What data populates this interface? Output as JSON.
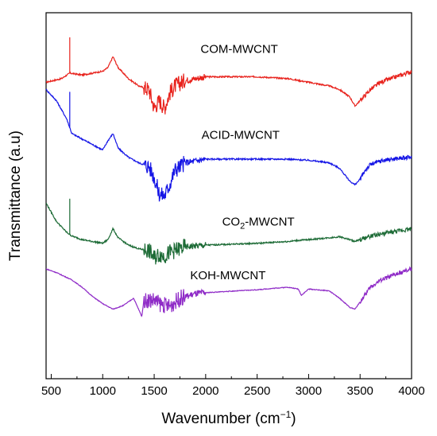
{
  "chart_data": {
    "type": "line",
    "xlabel": "Wavenumber (cm",
    "xlabel_sup": "−1",
    "xlabel_end": ")",
    "ylabel": "Transmittance (a.u)",
    "xlim": [
      450,
      4000
    ],
    "xticks": [
      500,
      1000,
      1500,
      2000,
      2500,
      3000,
      3500,
      4000
    ],
    "y_ticks_labeled": false,
    "grid": false,
    "series": [
      {
        "name": "COM-MWCNT",
        "name_parts": [
          "COM-MWCNT"
        ],
        "color": "#e8231d",
        "label_at": [
          1950,
          0.89
        ],
        "spike": 680,
        "points": [
          [
            450,
            0.81
          ],
          [
            600,
            0.82
          ],
          [
            680,
            0.835
          ],
          [
            800,
            0.83
          ],
          [
            900,
            0.835
          ],
          [
            1000,
            0.84
          ],
          [
            1050,
            0.85
          ],
          [
            1100,
            0.88
          ],
          [
            1150,
            0.85
          ],
          [
            1250,
            0.82
          ],
          [
            1350,
            0.8
          ],
          [
            1450,
            0.79
          ],
          [
            1500,
            0.74
          ],
          [
            1550,
            0.76
          ],
          [
            1600,
            0.74
          ],
          [
            1650,
            0.78
          ],
          [
            1700,
            0.8
          ],
          [
            1800,
            0.815
          ],
          [
            2000,
            0.825
          ],
          [
            2500,
            0.825
          ],
          [
            2800,
            0.82
          ],
          [
            2900,
            0.815
          ],
          [
            3000,
            0.81
          ],
          [
            3200,
            0.8
          ],
          [
            3300,
            0.79
          ],
          [
            3400,
            0.77
          ],
          [
            3450,
            0.745
          ],
          [
            3500,
            0.76
          ],
          [
            3600,
            0.79
          ],
          [
            3700,
            0.81
          ],
          [
            3800,
            0.82
          ],
          [
            4000,
            0.84
          ]
        ]
      },
      {
        "name": "ACID-MWCNT",
        "name_parts": [
          "ACID-MWCNT"
        ],
        "color": "#1515e6",
        "label_at": [
          1960,
          0.655
        ],
        "spike": 680,
        "points": [
          [
            450,
            0.79
          ],
          [
            550,
            0.76
          ],
          [
            650,
            0.71
          ],
          [
            700,
            0.67
          ],
          [
            800,
            0.655
          ],
          [
            900,
            0.64
          ],
          [
            1000,
            0.625
          ],
          [
            1050,
            0.65
          ],
          [
            1100,
            0.67
          ],
          [
            1150,
            0.63
          ],
          [
            1250,
            0.605
          ],
          [
            1350,
            0.59
          ],
          [
            1450,
            0.58
          ],
          [
            1500,
            0.55
          ],
          [
            1550,
            0.505
          ],
          [
            1600,
            0.5
          ],
          [
            1650,
            0.53
          ],
          [
            1700,
            0.57
          ],
          [
            1800,
            0.59
          ],
          [
            2000,
            0.6
          ],
          [
            2500,
            0.6
          ],
          [
            2800,
            0.6
          ],
          [
            2900,
            0.598
          ],
          [
            3000,
            0.597
          ],
          [
            3200,
            0.59
          ],
          [
            3300,
            0.575
          ],
          [
            3400,
            0.54
          ],
          [
            3450,
            0.53
          ],
          [
            3500,
            0.545
          ],
          [
            3550,
            0.57
          ],
          [
            3600,
            0.585
          ],
          [
            3700,
            0.595
          ],
          [
            3800,
            0.6
          ],
          [
            4000,
            0.605
          ]
        ]
      },
      {
        "name": "CO₂-MWCNT",
        "name_parts": [
          "CO",
          "2",
          "-MWCNT"
        ],
        "color": "#1d6b36",
        "label_at": [
          2160,
          0.418
        ],
        "spike": 680,
        "points": [
          [
            450,
            0.48
          ],
          [
            550,
            0.43
          ],
          [
            650,
            0.4
          ],
          [
            700,
            0.39
          ],
          [
            800,
            0.38
          ],
          [
            900,
            0.375
          ],
          [
            1000,
            0.37
          ],
          [
            1050,
            0.38
          ],
          [
            1100,
            0.41
          ],
          [
            1150,
            0.385
          ],
          [
            1250,
            0.365
          ],
          [
            1350,
            0.355
          ],
          [
            1450,
            0.35
          ],
          [
            1500,
            0.33
          ],
          [
            1550,
            0.34
          ],
          [
            1600,
            0.335
          ],
          [
            1650,
            0.345
          ],
          [
            1700,
            0.35
          ],
          [
            1800,
            0.36
          ],
          [
            2000,
            0.365
          ],
          [
            2500,
            0.37
          ],
          [
            2800,
            0.375
          ],
          [
            2900,
            0.378
          ],
          [
            3000,
            0.38
          ],
          [
            3200,
            0.385
          ],
          [
            3300,
            0.388
          ],
          [
            3400,
            0.38
          ],
          [
            3450,
            0.375
          ],
          [
            3500,
            0.38
          ],
          [
            3600,
            0.39
          ],
          [
            3700,
            0.395
          ],
          [
            3800,
            0.4
          ],
          [
            4000,
            0.41
          ]
        ]
      },
      {
        "name": "KOH-MWCNT",
        "name_parts": [
          "KOH-MWCNT"
        ],
        "color": "#8f2bc7",
        "label_at": [
          1850,
          0.272
        ],
        "spike": null,
        "points": [
          [
            450,
            0.3
          ],
          [
            550,
            0.29
          ],
          [
            700,
            0.27
          ],
          [
            800,
            0.25
          ],
          [
            900,
            0.225
          ],
          [
            1000,
            0.205
          ],
          [
            1100,
            0.19
          ],
          [
            1200,
            0.2
          ],
          [
            1300,
            0.22
          ],
          [
            1380,
            0.17
          ],
          [
            1400,
            0.215
          ],
          [
            1500,
            0.215
          ],
          [
            1550,
            0.205
          ],
          [
            1650,
            0.198
          ],
          [
            1750,
            0.22
          ],
          [
            1900,
            0.232
          ],
          [
            2000,
            0.235
          ],
          [
            2300,
            0.24
          ],
          [
            2500,
            0.243
          ],
          [
            2700,
            0.248
          ],
          [
            2800,
            0.25
          ],
          [
            2900,
            0.245
          ],
          [
            2930,
            0.228
          ],
          [
            3000,
            0.245
          ],
          [
            3200,
            0.24
          ],
          [
            3300,
            0.22
          ],
          [
            3400,
            0.195
          ],
          [
            3450,
            0.19
          ],
          [
            3500,
            0.21
          ],
          [
            3600,
            0.25
          ],
          [
            3700,
            0.27
          ],
          [
            3800,
            0.28
          ],
          [
            4000,
            0.3
          ]
        ]
      }
    ]
  }
}
